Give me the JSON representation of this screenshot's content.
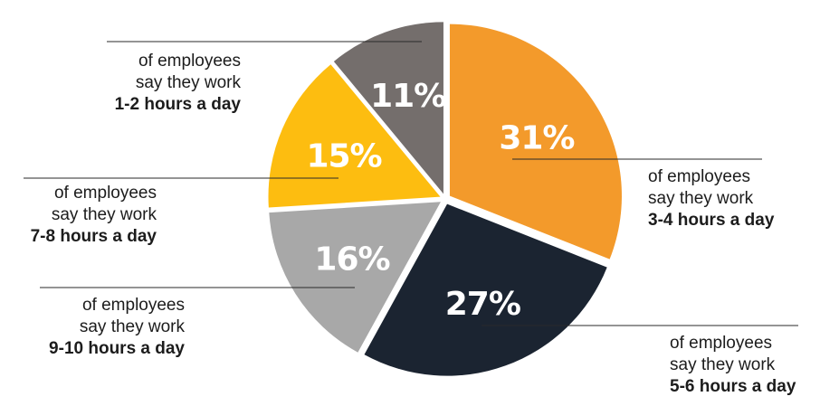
{
  "chart_data": {
    "type": "pie",
    "slices": [
      {
        "label": "3-4 hours a day",
        "value": 31,
        "value_label": "31%",
        "color": "#f39a2b",
        "line1": "of employees",
        "line2": "say they work"
      },
      {
        "label": "5-6 hours a day",
        "value": 27,
        "value_label": "27%",
        "color": "#1b2431",
        "line1": "of employees",
        "line2": "say they work"
      },
      {
        "label": "9-10 hours a day",
        "value": 16,
        "value_label": "16%",
        "color": "#a8a8a8",
        "line1": "of employees",
        "line2": "say they work"
      },
      {
        "label": "7-8 hours a day",
        "value": 15,
        "value_label": "15%",
        "color": "#fdbd10",
        "line1": "of employees",
        "line2": "say they work"
      },
      {
        "label": "1-2 hours a day",
        "value": 11,
        "value_label": "11%",
        "color": "#746e6c",
        "line1": "of employees",
        "line2": "say they work"
      }
    ]
  }
}
